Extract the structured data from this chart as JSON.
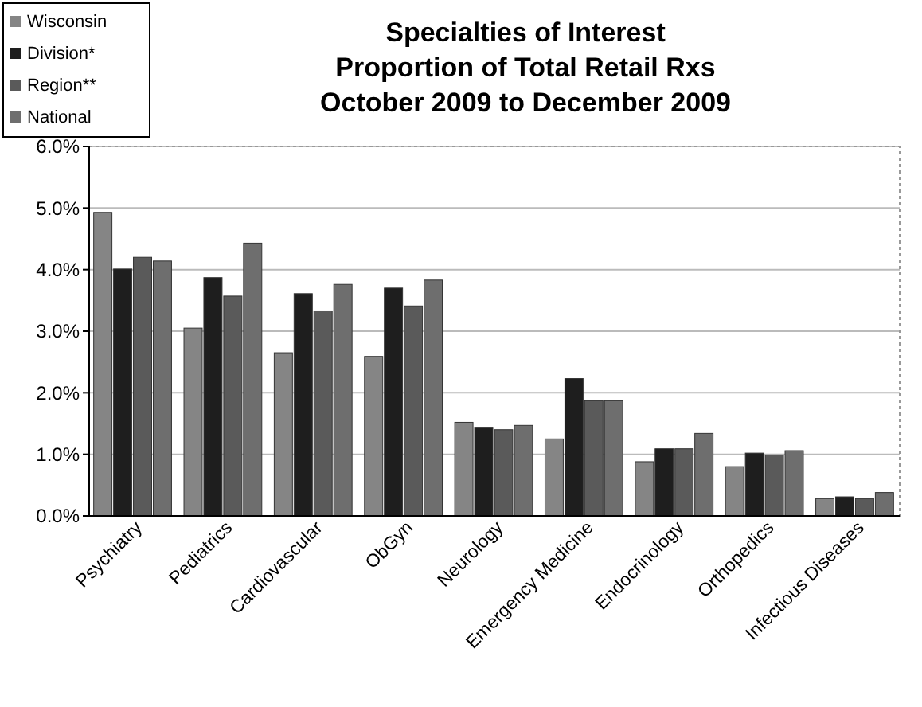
{
  "chart_data": {
    "type": "bar",
    "title": "Specialties of Interest\nProportion of Total Retail Rxs\nOctober 2009 to December 2009",
    "categories": [
      "Psychiatry",
      "Pediatrics",
      "Cardiovascular",
      "ObGyn",
      "Neurology",
      "Emergency Medicine",
      "Endocrinology",
      "Orthopedics",
      "Infectious Diseases"
    ],
    "series": [
      {
        "name": "Wisconsin",
        "color": "#858585",
        "values": [
          4.93,
          3.05,
          2.65,
          2.59,
          1.52,
          1.25,
          0.88,
          0.8,
          0.28
        ]
      },
      {
        "name": "Division*",
        "color": "#1e1e1e",
        "values": [
          4.01,
          3.87,
          3.61,
          3.7,
          1.44,
          2.23,
          1.09,
          1.02,
          0.31
        ]
      },
      {
        "name": "Region**",
        "color": "#5a5a5a",
        "values": [
          4.2,
          3.57,
          3.33,
          3.41,
          1.4,
          1.87,
          1.09,
          0.99,
          0.28
        ]
      },
      {
        "name": "National",
        "color": "#6e6e6e",
        "values": [
          4.14,
          4.43,
          3.76,
          3.83,
          1.47,
          1.87,
          1.34,
          1.06,
          0.38
        ]
      }
    ],
    "ylim": [
      0,
      6
    ],
    "yticks": [
      {
        "value": 0,
        "label": "0.0%"
      },
      {
        "value": 1,
        "label": "1.0%"
      },
      {
        "value": 2,
        "label": "2.0%"
      },
      {
        "value": 3,
        "label": "3.0%"
      },
      {
        "value": 4,
        "label": "4.0%"
      },
      {
        "value": 5,
        "label": "5.0%"
      },
      {
        "value": 6,
        "label": "6.0%"
      }
    ],
    "grid": "y",
    "legend": "top left"
  }
}
